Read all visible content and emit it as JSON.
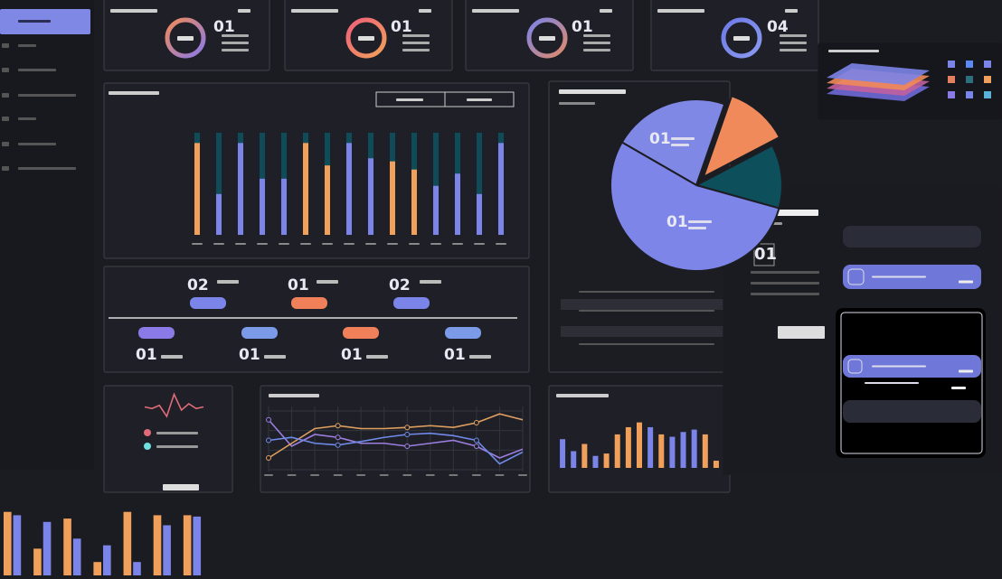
{
  "kpis": [
    "01",
    "01",
    "01",
    "04"
  ],
  "summary": {
    "top": [
      "02",
      "01",
      "02"
    ],
    "bottom": [
      "01",
      "01",
      "01",
      "01"
    ]
  },
  "detail": {
    "number": "01"
  },
  "chart_data": [
    {
      "type": "bar",
      "ylim": [
        0,
        100
      ],
      "values": [
        90,
        40,
        90,
        55,
        55,
        90,
        68,
        90,
        75,
        72,
        64,
        48,
        60,
        40,
        90
      ],
      "colors": [
        "#f0a05a",
        "#7b84e8",
        "#7b84e8",
        "#7b84e8",
        "#7b84e8",
        "#f0a05a",
        "#f0a05a",
        "#7b84e8",
        "#7b84e8",
        "#f0a05a",
        "#f0a05a",
        "#7b84e8",
        "#7b84e8",
        "#7b84e8",
        "#7b84e8"
      ]
    },
    {
      "type": "pie",
      "values": [
        22,
        12,
        12,
        54
      ],
      "colors": [
        "#8088e6",
        "#f08a5a",
        "#0e4f5c",
        "#7d86e8"
      ],
      "annotations": [
        "01",
        "01"
      ]
    },
    {
      "type": "line",
      "ylim": [
        0,
        100
      ],
      "series": [
        {
          "color": "#9b7ee0",
          "values": [
            85,
            40,
            60,
            55,
            45,
            45,
            40,
            45,
            50,
            40,
            20,
            35
          ]
        },
        {
          "color": "#e0a060",
          "values": [
            20,
            45,
            70,
            75,
            70,
            70,
            72,
            75,
            72,
            80,
            95,
            85
          ]
        },
        {
          "color": "#6f8ae8",
          "values": [
            50,
            55,
            45,
            42,
            48,
            55,
            60,
            62,
            58,
            50,
            10,
            30
          ]
        }
      ]
    },
    {
      "type": "bar",
      "ylim": [
        0,
        100
      ],
      "values": [
        60,
        35,
        50,
        25,
        30,
        70,
        85,
        95,
        85,
        70,
        65,
        75,
        80,
        70,
        15
      ],
      "colors": [
        "#7b84e8",
        "#7b84e8",
        "#f0a05a",
        "#7b84e8",
        "#f0a05a",
        "#f0a05a",
        "#f0a05a",
        "#f0a05a",
        "#7b84e8",
        "#f0a05a",
        "#7b84e8",
        "#7b84e8",
        "#7b84e8",
        "#f0a05a",
        "#f0a05a"
      ]
    },
    {
      "type": "bar",
      "ylim": [
        0,
        100
      ],
      "series": [
        {
          "color": "#f0a05a",
          "values": [
            95,
            40,
            85,
            20,
            95,
            90,
            90
          ]
        },
        {
          "color": "#7b84e8",
          "values": [
            90,
            80,
            55,
            45,
            20,
            75,
            88
          ]
        }
      ]
    },
    {
      "type": "line",
      "ylim": [
        0,
        100
      ],
      "series": [
        {
          "color": "#e06a78",
          "values": [
            50,
            45,
            55,
            20,
            90,
            40,
            60,
            45,
            50
          ]
        }
      ]
    }
  ]
}
